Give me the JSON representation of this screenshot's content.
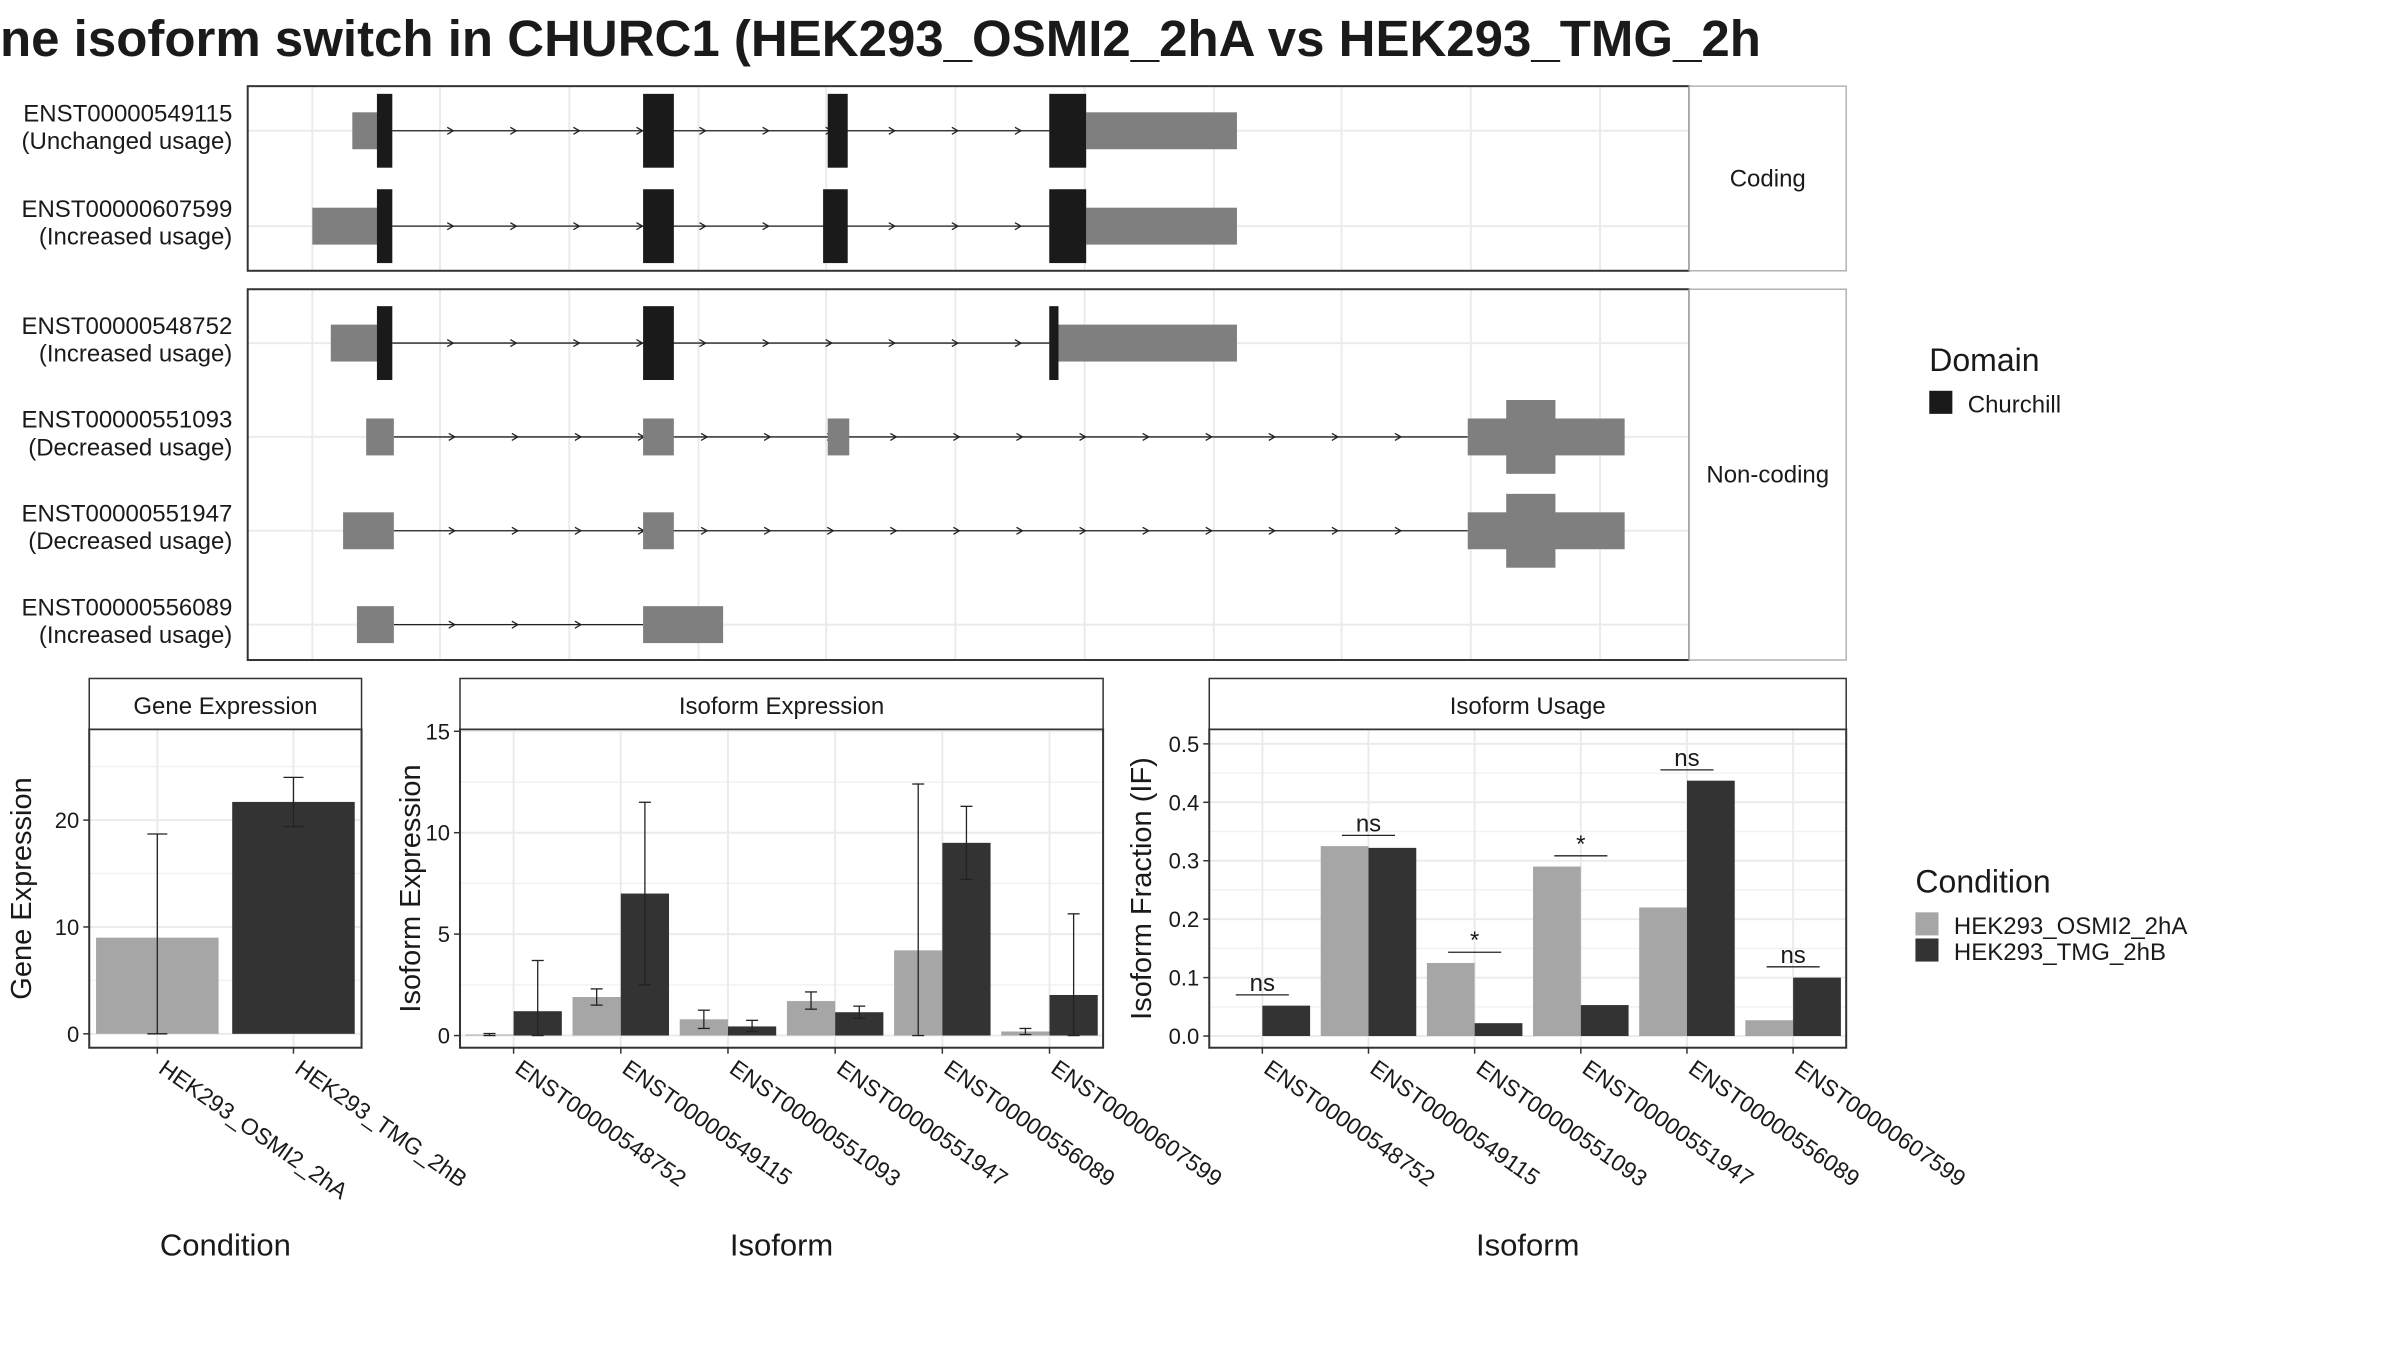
{
  "title": "ne isoform switch in CHURC1 (HEK293_OSMI2_2hA vs HEK293_TMG_2h",
  "colors": {
    "domain": "#1a1a1a",
    "utr": "#7f7f7f",
    "cond1": "#a6a6a6",
    "cond2": "#333333",
    "grid": "#ebebeb",
    "strip_bg": "#ffffff"
  },
  "transcripts": {
    "facets": [
      {
        "label": "Coding",
        "rows": [
          {
            "id": "ENST00000549115",
            "usage": "(Unchanged usage)",
            "utr": [
              [
                229,
                254
              ],
              [
                706,
                804
              ]
            ],
            "domains": [
              [
                245,
                255
              ],
              [
                418,
                438
              ],
              [
                538,
                551
              ],
              [
                682,
                706
              ]
            ],
            "line": [
              255,
              682
            ],
            "arrows": [
              255,
              682
            ],
            "tall": []
          },
          {
            "id": "ENST00000607599",
            "usage": "(Increased usage)",
            "utr": [
              [
                203,
                254
              ],
              [
                706,
                804
              ]
            ],
            "domains": [
              [
                245,
                255
              ],
              [
                418,
                438
              ],
              [
                535,
                551
              ],
              [
                682,
                706
              ]
            ],
            "line": [
              255,
              682
            ],
            "arrows": [
              255,
              682
            ],
            "tall": []
          }
        ]
      },
      {
        "label": "Non-coding",
        "rows": [
          {
            "id": "ENST00000548752",
            "usage": "(Increased usage)",
            "utr": [
              [
                215,
                254
              ],
              [
                686,
                804
              ]
            ],
            "domains": [
              [
                245,
                255
              ],
              [
                418,
                438
              ],
              [
                682,
                688
              ]
            ],
            "line": [
              255,
              682
            ],
            "arrows": [
              255,
              682
            ],
            "tall": []
          },
          {
            "id": "ENST00000551093",
            "usage": "(Decreased usage)",
            "utr": [
              [
                238,
                256
              ],
              [
                418,
                438
              ],
              [
                538,
                552
              ],
              [
                954,
                1056
              ]
            ],
            "domains": [],
            "line": [
              256,
              954
            ],
            "arrows": [
              256,
              954
            ],
            "tall": [
              [
                979,
                1011
              ]
            ]
          },
          {
            "id": "ENST00000551947",
            "usage": "(Decreased usage)",
            "utr": [
              [
                223,
                256
              ],
              [
                418,
                438
              ],
              [
                954,
                1056
              ]
            ],
            "domains": [],
            "line": [
              256,
              954
            ],
            "arrows": [
              256,
              954
            ],
            "tall": [
              [
                979,
                1011
              ]
            ]
          },
          {
            "id": "ENST00000556089",
            "usage": "(Increased usage)",
            "utr": [
              [
                232,
                256
              ],
              [
                418,
                470
              ]
            ],
            "domains": [],
            "line": [
              256,
              418
            ],
            "arrows": [
              256,
              418
            ],
            "tall": []
          }
        ]
      }
    ]
  },
  "legend_domain": {
    "title": "Domain",
    "items": [
      {
        "label": "Churchill",
        "color": "#1a1a1a"
      }
    ]
  },
  "legend_condition": {
    "title": "Condition",
    "items": [
      {
        "label": "HEK293_OSMI2_2hA",
        "color": "#a6a6a6"
      },
      {
        "label": "HEK293_TMG_2hB",
        "color": "#333333"
      }
    ]
  },
  "chart_data": [
    {
      "type": "bar",
      "title": "Gene Expression",
      "xlabel": "Condition",
      "ylabel": "Gene Expression",
      "ylim": [
        -1.3,
        28.5
      ],
      "yticks": [
        0,
        10,
        20
      ],
      "categories": [
        "HEK293_OSMI2_2hA",
        "HEK293_TMG_2hB"
      ],
      "series": [
        {
          "name": "HEK293_OSMI2_2hA",
          "values": [
            9.0,
            null
          ],
          "err_low": [
            0.0,
            null
          ],
          "err_high": [
            18.7,
            null
          ]
        },
        {
          "name": "HEK293_TMG_2hB",
          "values": [
            null,
            21.7
          ],
          "err_low": [
            null,
            19.4
          ],
          "err_high": [
            null,
            24.0
          ]
        }
      ]
    },
    {
      "type": "bar",
      "title": "Isoform Expression",
      "xlabel": "Isoform",
      "ylabel": "Isoform Expression",
      "ylim": [
        -0.6,
        15.1
      ],
      "yticks": [
        0,
        5,
        10,
        15
      ],
      "categories": [
        "ENST00000548752",
        "ENST00000549115",
        "ENST00000551093",
        "ENST00000551947",
        "ENST00000556089",
        "ENST00000607599"
      ],
      "series": [
        {
          "name": "HEK293_OSMI2_2hA",
          "values": [
            0.05,
            1.9,
            0.8,
            1.7,
            4.2,
            0.2
          ],
          "err_low": [
            0.0,
            1.5,
            0.35,
            1.3,
            0.0,
            0.05
          ],
          "err_high": [
            0.1,
            2.3,
            1.25,
            2.15,
            12.4,
            0.35
          ]
        },
        {
          "name": "HEK293_TMG_2hB",
          "values": [
            1.2,
            7.0,
            0.45,
            1.15,
            9.5,
            2.0
          ],
          "err_low": [
            0.0,
            2.5,
            0.2,
            0.85,
            7.7,
            0.0
          ],
          "err_high": [
            3.7,
            11.5,
            0.75,
            1.45,
            11.3,
            6.0
          ]
        }
      ]
    },
    {
      "type": "bar",
      "title": "Isoform Usage",
      "xlabel": "Isoform",
      "ylabel": "Isoform Fraction (IF)",
      "ylim": [
        -0.02,
        0.525
      ],
      "yticks": [
        0.0,
        0.1,
        0.2,
        0.3,
        0.4,
        0.5
      ],
      "ytick_labels": [
        "0.0",
        "0.1",
        "0.2",
        "0.3",
        "0.4",
        "0.5"
      ],
      "categories": [
        "ENST00000548752",
        "ENST00000549115",
        "ENST00000551093",
        "ENST00000551947",
        "ENST00000556089",
        "ENST00000607599"
      ],
      "series": [
        {
          "name": "HEK293_OSMI2_2hA",
          "values": [
            0.0,
            0.325,
            0.125,
            0.29,
            0.22,
            0.027
          ]
        },
        {
          "name": "HEK293_TMG_2hB",
          "values": [
            0.052,
            0.322,
            0.022,
            0.053,
            0.437,
            0.1
          ]
        }
      ],
      "significance": [
        "ns",
        "ns",
        "*",
        "*",
        "ns",
        "ns"
      ]
    }
  ]
}
